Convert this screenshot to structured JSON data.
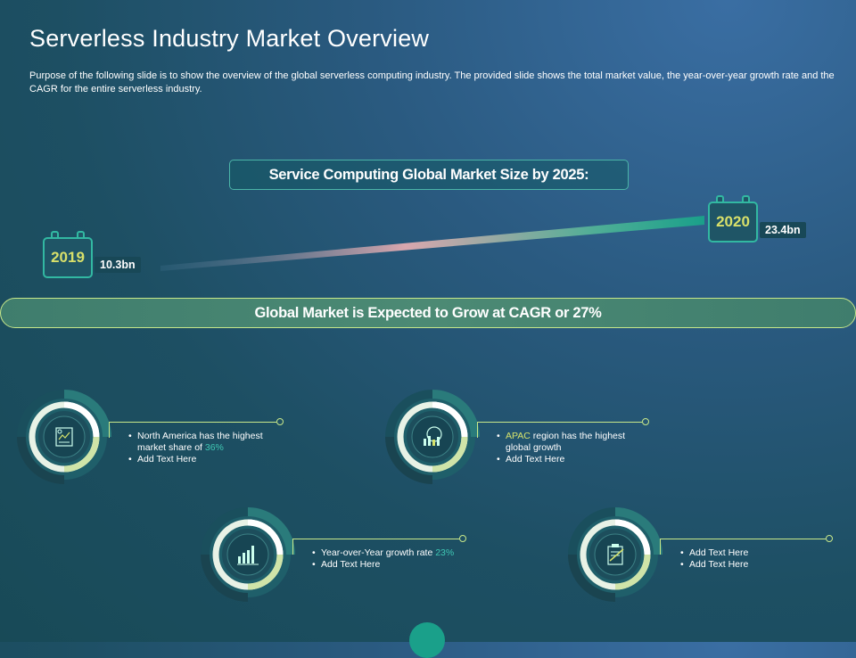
{
  "slide": {
    "title": "Serverless Industry Market Overview",
    "description": "Purpose of the following slide is to show the overview of the global serverless computing industry. The provided slide shows the total market value, the year-over-year growth rate and the CAGR for the entire serverless industry."
  },
  "market": {
    "heading": "Service Computing Global Market Size by 2025:",
    "start": {
      "year": "2019",
      "value": "10.3bn"
    },
    "end": {
      "year": "2020",
      "value": "23.4bn"
    },
    "cagr_text": "Global Market is Expected to Grow at CAGR or 27%"
  },
  "colors": {
    "accent_teal": "#32b8a2",
    "accent_lime": "#d6e36c",
    "highlight_teal": "#3fc7b3"
  },
  "items": [
    {
      "icon": "report-document-icon",
      "bullets": [
        {
          "pre": "North America has the highest market share of ",
          "hl": "36%",
          "post": ""
        },
        {
          "pre": "Add Text Here",
          "hl": "",
          "post": ""
        }
      ]
    },
    {
      "icon": "global-growth-chart-icon",
      "bullets": [
        {
          "pre": "",
          "hl": "APAC",
          "post": " region has the highest global growth"
        },
        {
          "pre": "Add Text Here",
          "hl": "",
          "post": ""
        }
      ]
    },
    {
      "icon": "bar-growth-chart-icon",
      "bullets": [
        {
          "pre": "Year-over-Year growth rate ",
          "hl": "23%",
          "post": ""
        },
        {
          "pre": "Add Text Here",
          "hl": "",
          "post": ""
        }
      ]
    },
    {
      "icon": "clipboard-checklist-icon",
      "bullets": [
        {
          "pre": "Add Text Here",
          "hl": "",
          "post": ""
        },
        {
          "pre": "Add Text Here",
          "hl": "",
          "post": ""
        }
      ]
    }
  ]
}
